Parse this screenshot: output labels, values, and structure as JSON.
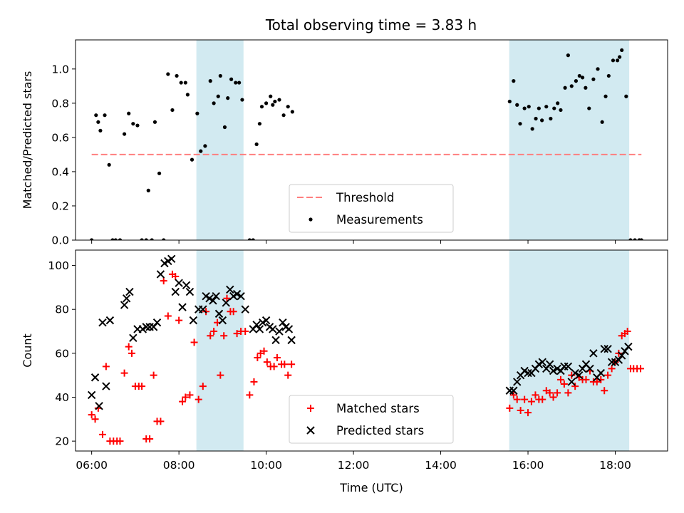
{
  "chart_data": [
    {
      "type": "scatter",
      "title": "Total observing time = 3.83 h",
      "xlabel": "",
      "ylabel": "Matched/Predicted stars",
      "xlim": [
        5.63,
        19.2
      ],
      "ylim": [
        0,
        1.17
      ],
      "yticks": [
        0.0,
        0.2,
        0.4,
        0.6,
        0.8,
        1.0
      ],
      "ytick_labels": [
        "0.0",
        "0.2",
        "0.4",
        "0.6",
        "0.8",
        "1.0"
      ],
      "legend_position": "lower center",
      "legend": [
        {
          "label": "Threshold",
          "marker": "dashed-line",
          "color": "#ff7f7f"
        },
        {
          "label": "Measurements",
          "marker": "dot",
          "color": "#000000"
        }
      ],
      "threshold": {
        "name": "Threshold",
        "y": 0.5,
        "x_start": 6.0,
        "x_end": 18.6,
        "color": "#ff7f7f"
      },
      "shaded_spans": [
        {
          "x_start": 8.4,
          "x_end": 9.48,
          "color": "#add8e6"
        },
        {
          "x_start": 15.57,
          "x_end": 18.32,
          "color": "#add8e6"
        }
      ],
      "series": [
        {
          "name": "Measurements",
          "color": "#000000",
          "x": [
            6.0,
            6.1,
            6.15,
            6.2,
            6.3,
            6.4,
            6.48,
            6.55,
            6.65,
            6.75,
            6.85,
            6.95,
            7.05,
            7.15,
            7.25,
            7.3,
            7.38,
            7.45,
            7.55,
            7.65,
            7.75,
            7.85,
            7.95,
            8.05,
            8.15,
            8.2,
            8.3,
            8.42,
            8.5,
            8.6,
            8.72,
            8.8,
            8.9,
            8.95,
            9.05,
            9.12,
            9.2,
            9.3,
            9.38,
            9.45,
            9.62,
            9.7,
            9.78,
            9.85,
            9.9,
            10.0,
            10.1,
            10.15,
            10.2,
            10.3,
            10.4,
            10.5,
            10.6,
            15.58,
            15.67,
            15.75,
            15.82,
            15.92,
            16.02,
            16.1,
            16.18,
            16.25,
            16.32,
            16.42,
            16.52,
            16.6,
            16.68,
            16.75,
            16.85,
            16.92,
            17.0,
            17.1,
            17.18,
            17.25,
            17.32,
            17.4,
            17.5,
            17.6,
            17.7,
            17.78,
            17.85,
            17.95,
            18.05,
            18.1,
            18.15,
            18.25,
            18.35,
            18.45,
            18.55,
            18.6
          ],
          "y": [
            0.0,
            0.73,
            0.69,
            0.64,
            0.73,
            0.44,
            0.0,
            0.0,
            0.0,
            0.62,
            0.74,
            0.68,
            0.67,
            0.0,
            0.0,
            0.29,
            0.0,
            0.69,
            0.39,
            0.0,
            0.97,
            0.76,
            0.96,
            0.92,
            0.92,
            0.85,
            0.47,
            0.74,
            0.52,
            0.55,
            0.93,
            0.8,
            0.84,
            0.96,
            0.66,
            0.83,
            0.94,
            0.92,
            0.92,
            0.82,
            0.0,
            0.0,
            0.56,
            0.68,
            0.78,
            0.8,
            0.84,
            0.79,
            0.81,
            0.82,
            0.73,
            0.78,
            0.75,
            0.81,
            0.93,
            0.79,
            0.68,
            0.77,
            0.78,
            0.65,
            0.71,
            0.77,
            0.7,
            0.78,
            0.71,
            0.77,
            0.8,
            0.76,
            0.89,
            1.08,
            0.9,
            0.93,
            0.96,
            0.95,
            0.89,
            0.77,
            0.94,
            1.0,
            0.69,
            0.84,
            0.96,
            1.05,
            1.05,
            1.07,
            1.11,
            0.84,
            0.0,
            0.0,
            0.0,
            0.0
          ]
        }
      ]
    },
    {
      "type": "scatter",
      "title": "",
      "xlabel": "Time (UTC)",
      "ylabel": "Count",
      "xlim": [
        5.63,
        19.2
      ],
      "ylim": [
        15.5,
        107
      ],
      "xticks": [
        6,
        8,
        10,
        12,
        14,
        16,
        18
      ],
      "xtick_labels": [
        "06:00",
        "08:00",
        "10:00",
        "12:00",
        "14:00",
        "16:00",
        "18:00"
      ],
      "yticks": [
        20,
        40,
        60,
        80,
        100
      ],
      "ytick_labels": [
        "20",
        "40",
        "60",
        "80",
        "100"
      ],
      "legend_position": "lower center",
      "legend": [
        {
          "label": "Matched stars",
          "marker": "plus",
          "color": "#ff0000"
        },
        {
          "label": "Predicted stars",
          "marker": "x",
          "color": "#000000"
        }
      ],
      "shaded_spans": [
        {
          "x_start": 8.4,
          "x_end": 9.48,
          "color": "#add8e6"
        },
        {
          "x_start": 15.57,
          "x_end": 18.32,
          "color": "#add8e6"
        }
      ],
      "series": [
        {
          "name": "Matched stars",
          "color": "#ff0000",
          "marker": "plus",
          "x": [
            6.0,
            6.08,
            6.15,
            6.25,
            6.33,
            6.42,
            6.5,
            6.58,
            6.65,
            6.75,
            6.85,
            6.92,
            7.0,
            7.08,
            7.15,
            7.25,
            7.33,
            7.42,
            7.5,
            7.58,
            7.65,
            7.75,
            7.85,
            7.92,
            8.0,
            8.08,
            8.15,
            8.25,
            8.35,
            8.45,
            8.55,
            8.62,
            8.72,
            8.8,
            8.88,
            8.95,
            9.03,
            9.1,
            9.18,
            9.25,
            9.33,
            9.42,
            9.52,
            9.62,
            9.72,
            9.8,
            9.87,
            9.95,
            10.02,
            10.1,
            10.18,
            10.25,
            10.35,
            10.42,
            10.5,
            10.58,
            15.58,
            15.67,
            15.75,
            15.83,
            15.92,
            16.0,
            16.08,
            16.17,
            16.25,
            16.33,
            16.42,
            16.5,
            16.58,
            16.67,
            16.75,
            16.83,
            16.92,
            17.0,
            17.08,
            17.17,
            17.25,
            17.33,
            17.42,
            17.5,
            17.58,
            17.67,
            17.75,
            17.83,
            17.92,
            18.0,
            18.08,
            18.15,
            18.22,
            18.28,
            18.35,
            18.42,
            18.5,
            18.58
          ],
          "y": [
            32,
            30,
            35,
            23,
            54,
            20,
            20,
            20,
            20,
            51,
            63,
            60,
            45,
            45,
            45,
            21,
            21,
            50,
            29,
            29,
            93,
            77,
            96,
            95,
            75,
            38,
            40,
            41,
            65,
            39,
            45,
            79,
            68,
            70,
            74,
            50,
            68,
            85,
            79,
            79,
            69,
            70,
            70,
            41,
            47,
            58,
            60,
            61,
            56,
            54,
            54,
            58,
            55,
            55,
            50,
            55,
            35,
            41,
            39,
            34,
            39,
            33,
            38,
            41,
            39,
            39,
            43,
            42,
            40,
            42,
            48,
            46,
            42,
            50,
            45,
            49,
            48,
            48,
            52,
            47,
            47,
            48,
            43,
            50,
            53,
            56,
            60,
            68,
            69,
            70,
            53,
            53,
            53,
            53
          ]
        },
        {
          "name": "Predicted stars",
          "color": "#000000",
          "marker": "x",
          "x": [
            6.0,
            6.08,
            6.17,
            6.25,
            6.33,
            6.42,
            6.75,
            6.8,
            6.87,
            6.95,
            7.05,
            7.17,
            7.25,
            7.33,
            7.42,
            7.5,
            7.58,
            7.67,
            7.75,
            7.83,
            7.92,
            8.0,
            8.08,
            8.17,
            8.25,
            8.33,
            8.45,
            8.55,
            8.62,
            8.7,
            8.78,
            8.85,
            8.92,
            9.0,
            9.08,
            9.17,
            9.25,
            9.33,
            9.42,
            9.52,
            9.7,
            9.78,
            9.85,
            9.92,
            10.0,
            10.08,
            10.15,
            10.22,
            10.3,
            10.38,
            10.45,
            10.52,
            10.58,
            15.58,
            15.67,
            15.75,
            15.83,
            15.92,
            16.0,
            16.08,
            16.17,
            16.25,
            16.33,
            16.42,
            16.5,
            16.58,
            16.67,
            16.75,
            16.83,
            16.92,
            17.0,
            17.08,
            17.17,
            17.25,
            17.33,
            17.42,
            17.5,
            17.58,
            17.67,
            17.75,
            17.83,
            17.92,
            18.0,
            18.08,
            18.15,
            18.22,
            18.3
          ],
          "y": [
            41,
            49,
            36,
            74,
            45,
            75,
            82,
            85,
            88,
            67,
            71,
            71,
            72,
            72,
            72,
            74,
            96,
            101,
            102,
            103,
            88,
            92,
            81,
            91,
            88,
            75,
            80,
            80,
            86,
            85,
            84,
            86,
            78,
            75,
            83,
            89,
            86,
            87,
            86,
            80,
            71,
            73,
            71,
            74,
            75,
            72,
            71,
            66,
            70,
            74,
            72,
            71,
            66,
            43,
            43,
            47,
            50,
            52,
            51,
            51,
            53,
            55,
            56,
            53,
            55,
            52,
            53,
            52,
            54,
            54,
            47,
            51,
            50,
            53,
            55,
            53,
            60,
            49,
            51,
            62,
            62,
            56,
            56,
            57,
            59,
            61,
            63
          ]
        }
      ]
    }
  ]
}
